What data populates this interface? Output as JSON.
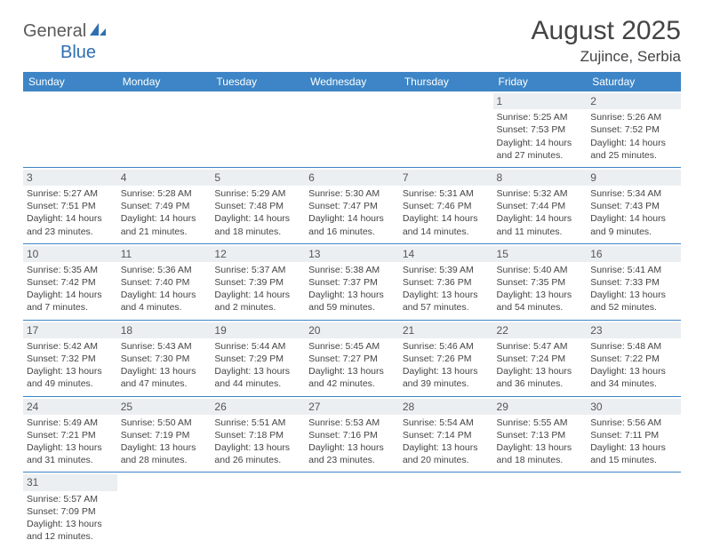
{
  "logo": {
    "text1": "General",
    "text2": "Blue"
  },
  "title": "August 2025",
  "location": "Zujince, Serbia",
  "colors": {
    "header_bg": "#3d85c6",
    "header_fg": "#ffffff",
    "daynum_bg": "#eceff1",
    "grid_line": "#3d85c6",
    "logo_accent": "#2f6fb0",
    "text": "#444444"
  },
  "weekdays": [
    "Sunday",
    "Monday",
    "Tuesday",
    "Wednesday",
    "Thursday",
    "Friday",
    "Saturday"
  ],
  "weeks": [
    [
      null,
      null,
      null,
      null,
      null,
      {
        "n": "1",
        "sunrise": "Sunrise: 5:25 AM",
        "sunset": "Sunset: 7:53 PM",
        "day1": "Daylight: 14 hours",
        "day2": "and 27 minutes."
      },
      {
        "n": "2",
        "sunrise": "Sunrise: 5:26 AM",
        "sunset": "Sunset: 7:52 PM",
        "day1": "Daylight: 14 hours",
        "day2": "and 25 minutes."
      }
    ],
    [
      {
        "n": "3",
        "sunrise": "Sunrise: 5:27 AM",
        "sunset": "Sunset: 7:51 PM",
        "day1": "Daylight: 14 hours",
        "day2": "and 23 minutes."
      },
      {
        "n": "4",
        "sunrise": "Sunrise: 5:28 AM",
        "sunset": "Sunset: 7:49 PM",
        "day1": "Daylight: 14 hours",
        "day2": "and 21 minutes."
      },
      {
        "n": "5",
        "sunrise": "Sunrise: 5:29 AM",
        "sunset": "Sunset: 7:48 PM",
        "day1": "Daylight: 14 hours",
        "day2": "and 18 minutes."
      },
      {
        "n": "6",
        "sunrise": "Sunrise: 5:30 AM",
        "sunset": "Sunset: 7:47 PM",
        "day1": "Daylight: 14 hours",
        "day2": "and 16 minutes."
      },
      {
        "n": "7",
        "sunrise": "Sunrise: 5:31 AM",
        "sunset": "Sunset: 7:46 PM",
        "day1": "Daylight: 14 hours",
        "day2": "and 14 minutes."
      },
      {
        "n": "8",
        "sunrise": "Sunrise: 5:32 AM",
        "sunset": "Sunset: 7:44 PM",
        "day1": "Daylight: 14 hours",
        "day2": "and 11 minutes."
      },
      {
        "n": "9",
        "sunrise": "Sunrise: 5:34 AM",
        "sunset": "Sunset: 7:43 PM",
        "day1": "Daylight: 14 hours",
        "day2": "and 9 minutes."
      }
    ],
    [
      {
        "n": "10",
        "sunrise": "Sunrise: 5:35 AM",
        "sunset": "Sunset: 7:42 PM",
        "day1": "Daylight: 14 hours",
        "day2": "and 7 minutes."
      },
      {
        "n": "11",
        "sunrise": "Sunrise: 5:36 AM",
        "sunset": "Sunset: 7:40 PM",
        "day1": "Daylight: 14 hours",
        "day2": "and 4 minutes."
      },
      {
        "n": "12",
        "sunrise": "Sunrise: 5:37 AM",
        "sunset": "Sunset: 7:39 PM",
        "day1": "Daylight: 14 hours",
        "day2": "and 2 minutes."
      },
      {
        "n": "13",
        "sunrise": "Sunrise: 5:38 AM",
        "sunset": "Sunset: 7:37 PM",
        "day1": "Daylight: 13 hours",
        "day2": "and 59 minutes."
      },
      {
        "n": "14",
        "sunrise": "Sunrise: 5:39 AM",
        "sunset": "Sunset: 7:36 PM",
        "day1": "Daylight: 13 hours",
        "day2": "and 57 minutes."
      },
      {
        "n": "15",
        "sunrise": "Sunrise: 5:40 AM",
        "sunset": "Sunset: 7:35 PM",
        "day1": "Daylight: 13 hours",
        "day2": "and 54 minutes."
      },
      {
        "n": "16",
        "sunrise": "Sunrise: 5:41 AM",
        "sunset": "Sunset: 7:33 PM",
        "day1": "Daylight: 13 hours",
        "day2": "and 52 minutes."
      }
    ],
    [
      {
        "n": "17",
        "sunrise": "Sunrise: 5:42 AM",
        "sunset": "Sunset: 7:32 PM",
        "day1": "Daylight: 13 hours",
        "day2": "and 49 minutes."
      },
      {
        "n": "18",
        "sunrise": "Sunrise: 5:43 AM",
        "sunset": "Sunset: 7:30 PM",
        "day1": "Daylight: 13 hours",
        "day2": "and 47 minutes."
      },
      {
        "n": "19",
        "sunrise": "Sunrise: 5:44 AM",
        "sunset": "Sunset: 7:29 PM",
        "day1": "Daylight: 13 hours",
        "day2": "and 44 minutes."
      },
      {
        "n": "20",
        "sunrise": "Sunrise: 5:45 AM",
        "sunset": "Sunset: 7:27 PM",
        "day1": "Daylight: 13 hours",
        "day2": "and 42 minutes."
      },
      {
        "n": "21",
        "sunrise": "Sunrise: 5:46 AM",
        "sunset": "Sunset: 7:26 PM",
        "day1": "Daylight: 13 hours",
        "day2": "and 39 minutes."
      },
      {
        "n": "22",
        "sunrise": "Sunrise: 5:47 AM",
        "sunset": "Sunset: 7:24 PM",
        "day1": "Daylight: 13 hours",
        "day2": "and 36 minutes."
      },
      {
        "n": "23",
        "sunrise": "Sunrise: 5:48 AM",
        "sunset": "Sunset: 7:22 PM",
        "day1": "Daylight: 13 hours",
        "day2": "and 34 minutes."
      }
    ],
    [
      {
        "n": "24",
        "sunrise": "Sunrise: 5:49 AM",
        "sunset": "Sunset: 7:21 PM",
        "day1": "Daylight: 13 hours",
        "day2": "and 31 minutes."
      },
      {
        "n": "25",
        "sunrise": "Sunrise: 5:50 AM",
        "sunset": "Sunset: 7:19 PM",
        "day1": "Daylight: 13 hours",
        "day2": "and 28 minutes."
      },
      {
        "n": "26",
        "sunrise": "Sunrise: 5:51 AM",
        "sunset": "Sunset: 7:18 PM",
        "day1": "Daylight: 13 hours",
        "day2": "and 26 minutes."
      },
      {
        "n": "27",
        "sunrise": "Sunrise: 5:53 AM",
        "sunset": "Sunset: 7:16 PM",
        "day1": "Daylight: 13 hours",
        "day2": "and 23 minutes."
      },
      {
        "n": "28",
        "sunrise": "Sunrise: 5:54 AM",
        "sunset": "Sunset: 7:14 PM",
        "day1": "Daylight: 13 hours",
        "day2": "and 20 minutes."
      },
      {
        "n": "29",
        "sunrise": "Sunrise: 5:55 AM",
        "sunset": "Sunset: 7:13 PM",
        "day1": "Daylight: 13 hours",
        "day2": "and 18 minutes."
      },
      {
        "n": "30",
        "sunrise": "Sunrise: 5:56 AM",
        "sunset": "Sunset: 7:11 PM",
        "day1": "Daylight: 13 hours",
        "day2": "and 15 minutes."
      }
    ],
    [
      {
        "n": "31",
        "sunrise": "Sunrise: 5:57 AM",
        "sunset": "Sunset: 7:09 PM",
        "day1": "Daylight: 13 hours",
        "day2": "and 12 minutes."
      },
      null,
      null,
      null,
      null,
      null,
      null
    ]
  ]
}
